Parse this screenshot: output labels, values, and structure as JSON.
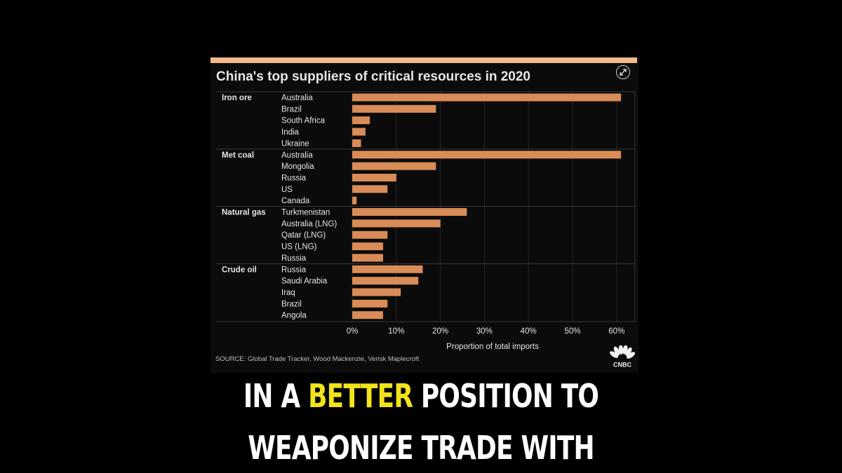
{
  "colors": {
    "background": "#000000",
    "panel": "#0b0b0b",
    "accent_strip": "#f2b98a",
    "bar": "#d98c57",
    "text": "#e6e6e6",
    "grid": "#262626",
    "caption": "#ffffff",
    "caption_highlight": "#f2e41a"
  },
  "chart_data": {
    "type": "bar",
    "orientation": "horizontal",
    "title": "China's top suppliers of critical resources in 2020",
    "xlabel": "Proportion of total imports",
    "xlim": [
      0,
      63
    ],
    "x_ticks": [
      "0%",
      "10%",
      "20%",
      "30%",
      "40%",
      "50%",
      "60%"
    ],
    "x_tick_values": [
      0,
      10,
      20,
      30,
      40,
      50,
      60
    ],
    "grid": "vertical",
    "groups": [
      {
        "name": "Iron ore",
        "categories": [
          "Australia",
          "Brazil",
          "South Africa",
          "India",
          "Ukraine"
        ],
        "values": [
          61,
          19,
          4,
          3,
          2
        ]
      },
      {
        "name": "Met coal",
        "categories": [
          "Australia",
          "Mongolia",
          "Russia",
          "US",
          "Canada"
        ],
        "values": [
          61,
          19,
          10,
          8,
          1
        ]
      },
      {
        "name": "Natural gas",
        "categories": [
          "Turkmenistan",
          "Australia (LNG)",
          "Qatar (LNG)",
          "US (LNG)",
          "Russia"
        ],
        "values": [
          26,
          20,
          8,
          7,
          7
        ]
      },
      {
        "name": "Crude oil",
        "categories": [
          "Russia",
          "Saudi Arabia",
          "Iraq",
          "Brazil",
          "Angola"
        ],
        "values": [
          16,
          15,
          11,
          8,
          7
        ]
      }
    ]
  },
  "source": "SOURCE: Global Trade Tracker, Wood Mackenzie, Verisk Maplecroft",
  "logo_text": "CNBC",
  "icons": {
    "expand": "expand-icon",
    "logo": "nbc-peacock-icon"
  },
  "caption": {
    "line1_before": "IN A ",
    "line1_highlight": "BETTER",
    "line1_after": " POSITION TO",
    "line2": "WEAPONIZE TRADE WITH"
  }
}
